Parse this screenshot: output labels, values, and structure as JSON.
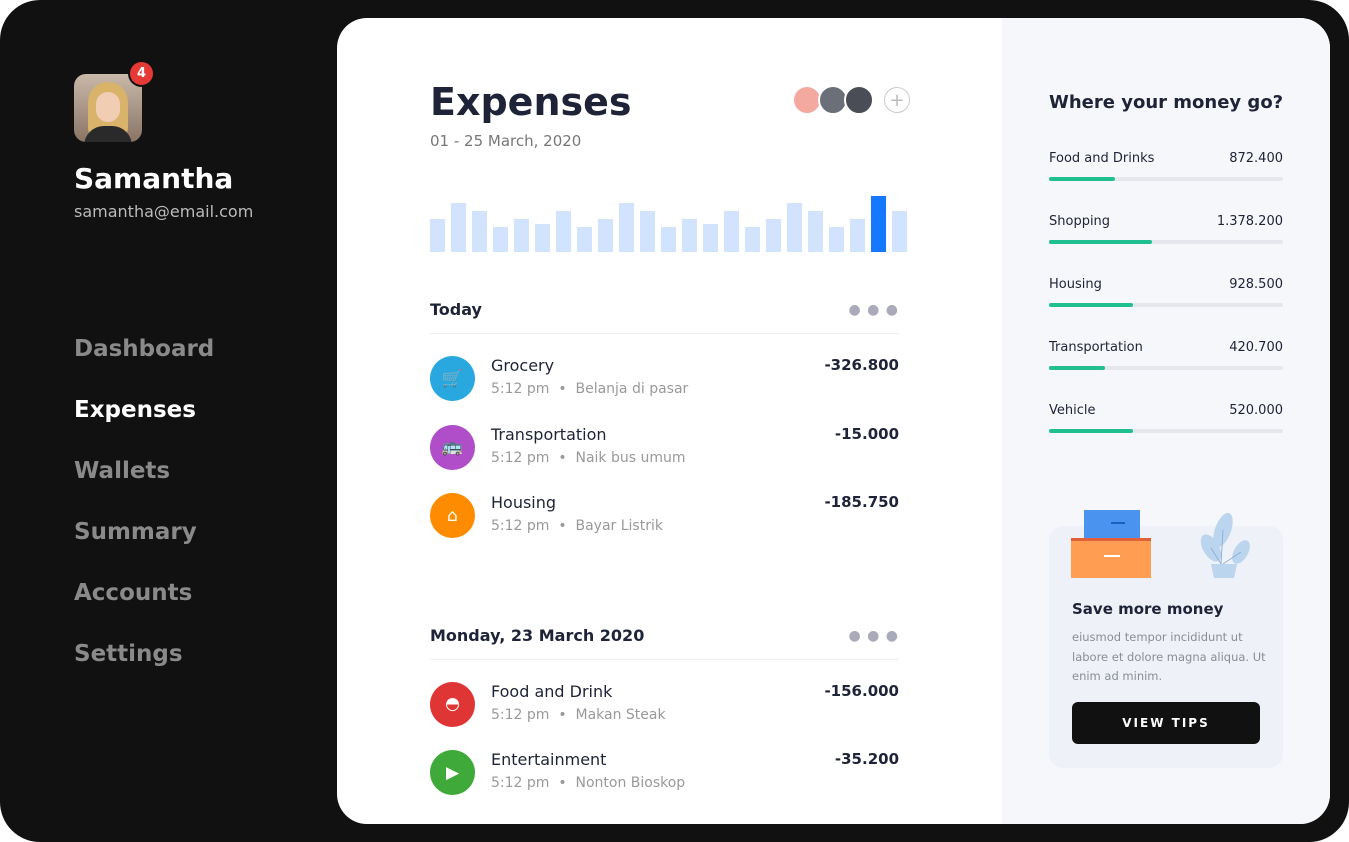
{
  "user": {
    "name": "Samantha",
    "email": "samantha@email.com",
    "notifications": "4"
  },
  "nav": [
    "Dashboard",
    "Expenses",
    "Wallets",
    "Summary",
    "Accounts",
    "Settings"
  ],
  "active_nav": "Expenses",
  "header": {
    "title": "Expenses",
    "date_range": "01 - 25 March, 2020",
    "add_icon": "plus-icon"
  },
  "chart_data": {
    "type": "bar",
    "values": [
      33,
      49,
      41,
      25,
      33,
      28,
      41,
      25,
      33,
      49,
      41,
      25,
      33,
      28,
      41,
      25,
      33,
      49,
      41,
      25,
      33,
      56,
      41
    ],
    "highlight_index": 21,
    "colors": {
      "bar": "#d1e3fd",
      "highlight": "#1677ff"
    }
  },
  "groups": [
    {
      "title": "Today",
      "items": [
        {
          "name": "Grocery",
          "time": "5:12 pm",
          "note": "Belanja di pasar",
          "amount": "-326.800",
          "icon": "cart-icon",
          "color": "#29a8e0",
          "glyph": "🛒"
        },
        {
          "name": "Transportation",
          "time": "5:12 pm",
          "note": "Naik bus umum",
          "amount": "-15.000",
          "icon": "bus-icon",
          "color": "#b04ec9",
          "glyph": "🚌"
        },
        {
          "name": "Housing",
          "time": "5:12 pm",
          "note": "Bayar Listrik",
          "amount": "-185.750",
          "icon": "home-icon",
          "color": "#ff8c00",
          "glyph": "⌂"
        }
      ]
    },
    {
      "title": "Monday, 23 March 2020",
      "items": [
        {
          "name": "Food and Drink",
          "time": "5:12 pm",
          "note": "Makan Steak",
          "amount": "-156.000",
          "icon": "food-icon",
          "color": "#e03535",
          "glyph": "◓"
        },
        {
          "name": "Entertainment",
          "time": "5:12 pm",
          "note": "Nonton Bioskop",
          "amount": "-35.200",
          "icon": "play-icon",
          "color": "#3faa3a",
          "glyph": "▶"
        }
      ]
    }
  ],
  "right": {
    "title": "Where your money go?",
    "categories": [
      {
        "label": "Food and Drinks",
        "value": "872.400",
        "progress": 0.28
      },
      {
        "label": "Shopping",
        "value": "1.378.200",
        "progress": 0.44
      },
      {
        "label": "Housing",
        "value": "928.500",
        "progress": 0.36
      },
      {
        "label": "Transportation",
        "value": "420.700",
        "progress": 0.24
      },
      {
        "label": "Vehicle",
        "value": "520.000",
        "progress": 0.36
      }
    ]
  },
  "card": {
    "title": "Save more money",
    "text": "eiusmod tempor incididunt ut labore et dolore magna aliqua. Ut enim ad minim.",
    "button": "VIEW TIPS"
  }
}
